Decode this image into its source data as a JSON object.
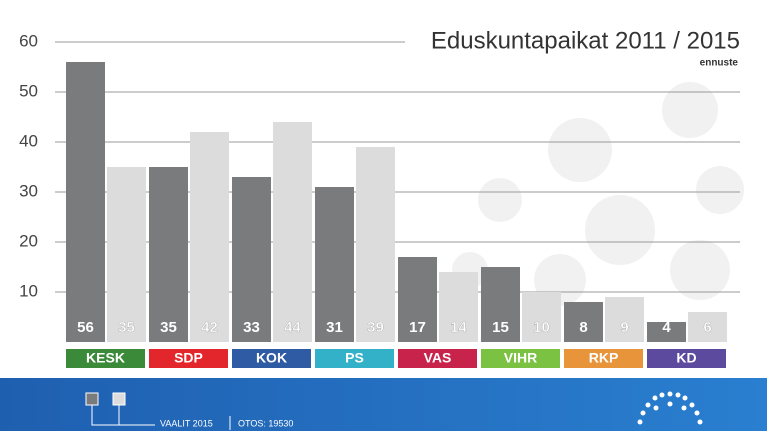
{
  "chart_data": {
    "type": "bar",
    "title": "Eduskuntapaikat 2011 / 2015",
    "subtitle": "ennuste",
    "categories": [
      "KESK",
      "SDP",
      "KOK",
      "PS",
      "VAS",
      "VIHR",
      "RKP",
      "KD"
    ],
    "category_colors": [
      "#3a8a3a",
      "#e2262c",
      "#2f5ba5",
      "#33b1c9",
      "#c8234a",
      "#7cc242",
      "#e8943a",
      "#5b4a9e"
    ],
    "series": [
      {
        "color": "#7a7b7d",
        "values": [
          56,
          35,
          33,
          31,
          17,
          15,
          8,
          4
        ]
      },
      {
        "color": "#dcdcdc",
        "values": [
          35,
          42,
          44,
          39,
          14,
          10,
          9,
          6
        ]
      }
    ],
    "ylim": [
      0,
      60
    ],
    "yticks": [
      10,
      20,
      30,
      40,
      50,
      60
    ],
    "grid": true,
    "footer": [
      "VAALIT 2015",
      "OTOS: 19530"
    ]
  }
}
